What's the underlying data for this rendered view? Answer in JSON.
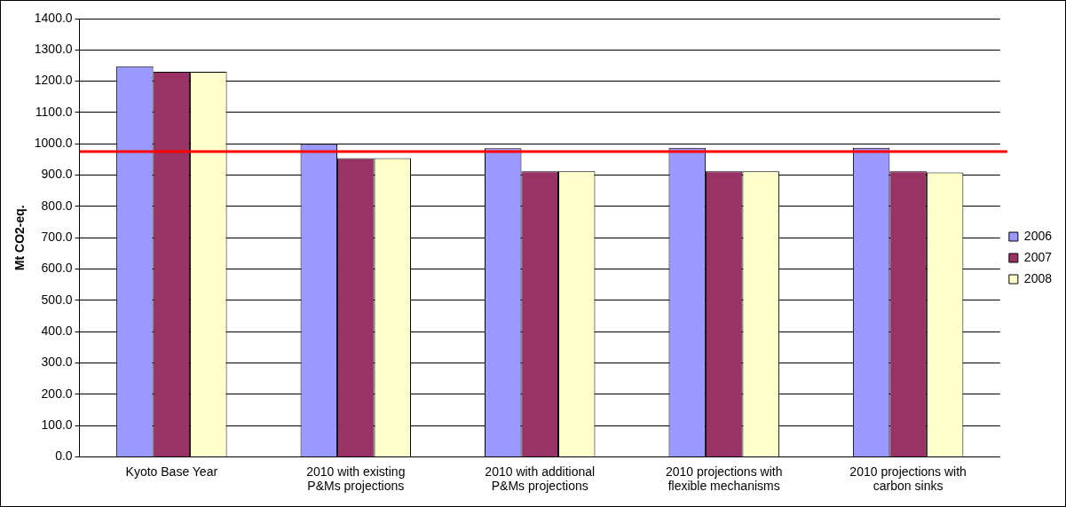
{
  "chart_data": {
    "type": "bar",
    "categories": [
      "Kyoto Base Year",
      "2010 with existing P&Ms projections",
      "2010 with additional P&Ms projections",
      "2010 projections with flexible mechanisms",
      "2010 projections with carbon sinks"
    ],
    "series": [
      {
        "name": "2006",
        "color": "#9999ff",
        "values": [
          1248,
          999,
          986,
          987,
          987
        ]
      },
      {
        "name": "2007",
        "color": "#993366",
        "values": [
          1230,
          954,
          912,
          912,
          912
        ]
      },
      {
        "name": "2008",
        "color": "#ffffcc",
        "values": [
          1230,
          954,
          912,
          912,
          909
        ]
      }
    ],
    "ylabel": "Mt CO2-eq.",
    "ylim": [
      0,
      1400
    ],
    "yticks": [
      {
        "value": 0,
        "label": "0.0"
      },
      {
        "value": 100,
        "label": "100.0"
      },
      {
        "value": 200,
        "label": "200.0"
      },
      {
        "value": 300,
        "label": "300.0"
      },
      {
        "value": 400,
        "label": "400.0"
      },
      {
        "value": 500,
        "label": "500.0"
      },
      {
        "value": 600,
        "label": "600.0"
      },
      {
        "value": 700,
        "label": "700.0"
      },
      {
        "value": 800,
        "label": "800.0"
      },
      {
        "value": 900,
        "label": "900.0"
      },
      {
        "value": 1000,
        "label": "1000.0"
      },
      {
        "value": 1100,
        "label": "1100.0"
      },
      {
        "value": 1200,
        "label": "1200.0"
      },
      {
        "value": 1300,
        "label": "1300.0"
      },
      {
        "value": 1400,
        "label": "1400.0"
      }
    ],
    "ref_lines": [
      {
        "axis": "y",
        "value": 975,
        "color": "#ff0000"
      }
    ],
    "grid": "y",
    "legend": "right"
  }
}
